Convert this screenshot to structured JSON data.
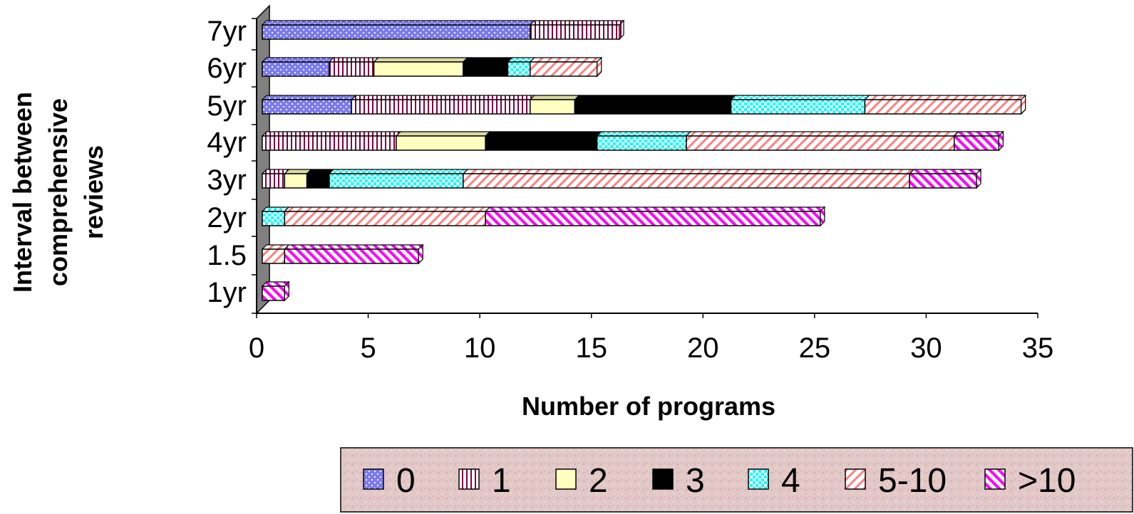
{
  "chart_data": {
    "type": "bar",
    "orientation": "horizontal",
    "stacked": true,
    "style": "3d",
    "xlabel": "Number of programs",
    "ylabel": "Interval between comprehensive reviews",
    "xlim": [
      0,
      35
    ],
    "xticks": [
      0,
      5,
      10,
      15,
      20,
      25,
      30,
      35
    ],
    "categories": [
      "7yr",
      "6yr",
      "5yr",
      "4yr",
      "3yr",
      "2yr",
      "1.5",
      "1yr"
    ],
    "series": [
      {
        "name": "0",
        "color": "#7b7bef",
        "pattern": "dots",
        "values": [
          12,
          3,
          4,
          0,
          0,
          0,
          0,
          0
        ]
      },
      {
        "name": "1",
        "color": "#ffffff",
        "pattern": "vertical",
        "values": [
          4,
          2,
          8,
          6,
          1,
          0,
          0,
          0
        ]
      },
      {
        "name": "2",
        "color": "#ffffc0",
        "pattern": "solid",
        "values": [
          0,
          4,
          2,
          4,
          1,
          0,
          0,
          0
        ]
      },
      {
        "name": "3",
        "color": "#000000",
        "pattern": "solid",
        "values": [
          0,
          2,
          7,
          5,
          1,
          0,
          0,
          0
        ]
      },
      {
        "name": "4",
        "color": "#00ffff",
        "pattern": "checker",
        "values": [
          0,
          1,
          6,
          4,
          6,
          1,
          0,
          0
        ]
      },
      {
        "name": "5-10",
        "color": "#ff8080",
        "pattern": "diagonal-up",
        "values": [
          0,
          3,
          7,
          12,
          20,
          9,
          1,
          0
        ]
      },
      {
        "name": ">10",
        "color": "#ff00ff",
        "pattern": "diagonal-down",
        "values": [
          0,
          0,
          0,
          2,
          3,
          15,
          6,
          1
        ]
      }
    ],
    "legend_position": "bottom-right",
    "grid": false
  }
}
